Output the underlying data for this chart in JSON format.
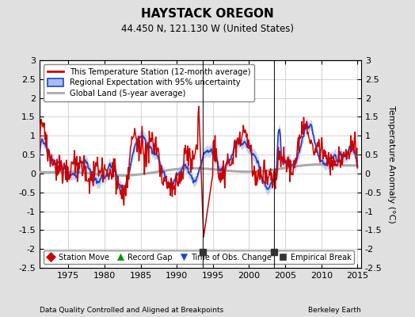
{
  "title": "HAYSTACK OREGON",
  "subtitle": "44.450 N, 121.130 W (United States)",
  "ylabel": "Temperature Anomaly (°C)",
  "xlabel_left": "Data Quality Controlled and Aligned at Breakpoints",
  "xlabel_right": "Berkeley Earth",
  "ylim": [
    -2.5,
    3.0
  ],
  "xlim": [
    1971.0,
    2015.5
  ],
  "yticks": [
    -2.5,
    -2,
    -1.5,
    -1,
    -0.5,
    0,
    0.5,
    1,
    1.5,
    2,
    2.5,
    3
  ],
  "xticks": [
    1975,
    1980,
    1985,
    1990,
    1995,
    2000,
    2005,
    2010,
    2015
  ],
  "bg_color": "#e0e0e0",
  "plot_bg_color": "#ffffff",
  "grid_color": "#cccccc",
  "red_color": "#cc0000",
  "blue_color": "#2244cc",
  "blue_fill_color": "#aabbee",
  "gray_color": "#aaaaaa",
  "empirical_break_years": [
    1993.6,
    2003.5
  ],
  "legend1_labels": [
    "This Temperature Station (12-month average)",
    "Regional Expectation with 95% uncertainty",
    "Global Land (5-year average)"
  ],
  "legend2_labels": [
    "Station Move",
    "Record Gap",
    "Time of Obs. Change",
    "Empirical Break"
  ],
  "legend2_markers": [
    "D",
    "^",
    "v",
    "s"
  ],
  "legend2_colors": [
    "#cc0000",
    "#009900",
    "#2244cc",
    "#333333"
  ]
}
